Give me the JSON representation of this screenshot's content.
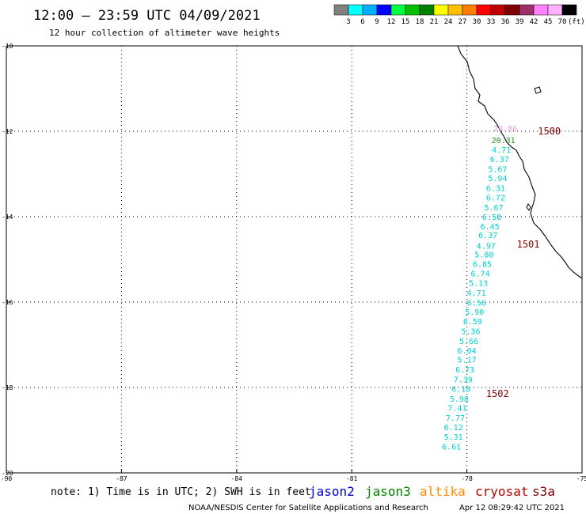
{
  "header": {
    "title": "12:00 – 23:59 UTC 04/09/2021",
    "subtitle": "12 hour collection of altimeter wave heights"
  },
  "colorbar": {
    "colors": [
      "#808080",
      "#00ffff",
      "#00b0ff",
      "#0000ff",
      "#00ff40",
      "#00c000",
      "#008000",
      "#ffff00",
      "#ffc000",
      "#ff8000",
      "#ff0000",
      "#c00000",
      "#800000",
      "#a0306a",
      "#ff80ff",
      "#ffb0ff",
      "#000000"
    ],
    "labels": [
      "3",
      "6",
      "9",
      "12",
      "15",
      "18",
      "21",
      "24",
      "27",
      "30",
      "33",
      "36",
      "39",
      "42",
      "45",
      "70"
    ],
    "units": "(ft)"
  },
  "map": {
    "lon_range": [
      -90,
      -75
    ],
    "lat_range": [
      -20,
      -10
    ],
    "grid": true,
    "x_ticks": [
      "-90",
      "-87",
      "-84",
      "-81",
      "-78",
      "-75"
    ],
    "y_ticks": [
      "-10",
      "-12",
      "-14",
      "-16",
      "-18",
      "-20"
    ],
    "coast_color": "#000000",
    "island_name": "island-icon"
  },
  "observations": [
    {
      "value": "20.86",
      "lon": -77.0,
      "lat": -12.0,
      "color": "#e8a0e8"
    },
    {
      "value": "20.31",
      "lon": -77.05,
      "lat": -12.28,
      "color": "#228b22"
    },
    {
      "value": "4.71",
      "lon": -77.1,
      "lat": -12.5,
      "color": "#00ced1"
    },
    {
      "value": "6.37",
      "lon": -77.15,
      "lat": -12.72,
      "color": "#00ced1"
    },
    {
      "value": "5.67",
      "lon": -77.2,
      "lat": -12.95,
      "color": "#00ced1"
    },
    {
      "value": "5.94",
      "lon": -77.2,
      "lat": -13.17,
      "color": "#00ced1"
    },
    {
      "value": "6.31",
      "lon": -77.25,
      "lat": -13.4,
      "color": "#00ced1"
    },
    {
      "value": "6.72",
      "lon": -77.25,
      "lat": -13.62,
      "color": "#00ced1"
    },
    {
      "value": "5.67",
      "lon": -77.3,
      "lat": -13.85,
      "color": "#00ced1"
    },
    {
      "value": "6.58",
      "lon": -77.35,
      "lat": -14.07,
      "color": "#00ced1"
    },
    {
      "value": "6.45",
      "lon": -77.4,
      "lat": -14.3,
      "color": "#00ced1"
    },
    {
      "value": "6.37",
      "lon": -77.45,
      "lat": -14.5,
      "color": "#00ced1"
    },
    {
      "value": "4.97",
      "lon": -77.5,
      "lat": -14.75,
      "color": "#00ced1"
    },
    {
      "value": "5.80",
      "lon": -77.55,
      "lat": -14.95,
      "color": "#00ced1"
    },
    {
      "value": "6.85",
      "lon": -77.6,
      "lat": -15.18,
      "color": "#00ced1"
    },
    {
      "value": "6.74",
      "lon": -77.65,
      "lat": -15.4,
      "color": "#00ced1"
    },
    {
      "value": "5.13",
      "lon": -77.7,
      "lat": -15.62,
      "color": "#00ced1"
    },
    {
      "value": "4.71",
      "lon": -77.75,
      "lat": -15.85,
      "color": "#00ced1"
    },
    {
      "value": "6.56",
      "lon": -77.75,
      "lat": -16.08,
      "color": "#00ced1"
    },
    {
      "value": "5.90",
      "lon": -77.8,
      "lat": -16.3,
      "color": "#00ced1"
    },
    {
      "value": "6.59",
      "lon": -77.85,
      "lat": -16.52,
      "color": "#00ced1"
    },
    {
      "value": "5.36",
      "lon": -77.9,
      "lat": -16.75,
      "color": "#00ced1"
    },
    {
      "value": "5.66",
      "lon": -77.95,
      "lat": -16.98,
      "color": "#00ced1"
    },
    {
      "value": "6.04",
      "lon": -78.0,
      "lat": -17.2,
      "color": "#00ced1"
    },
    {
      "value": "5.17",
      "lon": -78.0,
      "lat": -17.42,
      "color": "#00ced1"
    },
    {
      "value": "6.73",
      "lon": -78.05,
      "lat": -17.65,
      "color": "#00ced1"
    },
    {
      "value": "7.39",
      "lon": -78.1,
      "lat": -17.88,
      "color": "#00ced1"
    },
    {
      "value": "6.18",
      "lon": -78.15,
      "lat": -18.1,
      "color": "#00ced1"
    },
    {
      "value": "5.98",
      "lon": -78.2,
      "lat": -18.33,
      "color": "#00ced1"
    },
    {
      "value": "7.41",
      "lon": -78.25,
      "lat": -18.55,
      "color": "#00ced1"
    },
    {
      "value": "7.77",
      "lon": -78.3,
      "lat": -18.78,
      "color": "#00ced1"
    },
    {
      "value": "6.12",
      "lon": -78.35,
      "lat": -19.0,
      "color": "#00ced1"
    },
    {
      "value": "5.31",
      "lon": -78.35,
      "lat": -19.22,
      "color": "#00ced1"
    },
    {
      "value": "6.61",
      "lon": -78.4,
      "lat": -19.45,
      "color": "#00ced1"
    }
  ],
  "passes": [
    {
      "label": "1500",
      "lon": -76.15,
      "lat": -12.0,
      "color": "#800000"
    },
    {
      "label": "1501",
      "lon": -76.7,
      "lat": -14.65,
      "color": "#800000"
    },
    {
      "label": "1502",
      "lon": -77.5,
      "lat": -18.15,
      "color": "#800000"
    }
  ],
  "footer": {
    "note": "note: 1) Time is in UTC; 2) SWH is in feet",
    "satellites": [
      {
        "name": "jason2",
        "color": "#0000cc"
      },
      {
        "name": "jason3",
        "color": "#008000"
      },
      {
        "name": "altika",
        "color": "#ff8c00"
      },
      {
        "name": "cryosat",
        "color": "#b00000"
      },
      {
        "name": "s3a",
        "color": "#800000"
      }
    ],
    "credit": "NOAA/NESDIS Center for Satellite Applications and Research",
    "timestamp": "Apr 12 08:29:42 UTC 2021"
  }
}
